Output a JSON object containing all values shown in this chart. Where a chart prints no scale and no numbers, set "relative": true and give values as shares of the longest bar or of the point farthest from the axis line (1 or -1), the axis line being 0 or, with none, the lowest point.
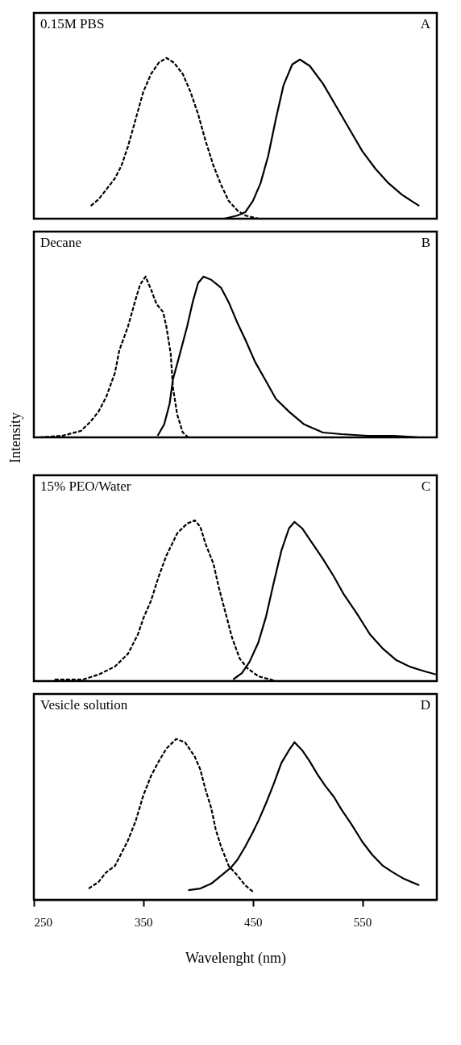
{
  "chart_data": [
    {
      "type": "line",
      "title": "0.15M PBS",
      "annotations": [
        "A"
      ],
      "relative": true,
      "xlim": [
        250,
        618
      ],
      "tick_labels": false,
      "grid": false,
      "series": [
        {
          "color": "#000000",
          "line_style": "dashed",
          "x": [
            302,
            309,
            316,
            324,
            330,
            336,
            343,
            350,
            357,
            364,
            371,
            378,
            386,
            393,
            400,
            407,
            414,
            421,
            428,
            436,
            443,
            455,
            476
          ],
          "values": [
            0.08,
            0.12,
            0.18,
            0.25,
            0.33,
            0.45,
            0.62,
            0.79,
            0.9,
            0.97,
            1,
            0.97,
            0.9,
            0.79,
            0.65,
            0.48,
            0.33,
            0.21,
            0.11,
            0.05,
            0.02,
            0,
            0
          ]
        },
        {
          "color": "#000000",
          "line_style": "solid",
          "x": [
            405,
            424,
            436,
            443,
            450,
            457,
            464,
            471,
            478,
            486,
            493,
            502,
            514,
            526,
            538,
            550,
            562,
            574,
            586,
            595,
            602
          ],
          "values": [
            0,
            0,
            0.02,
            0.04,
            0.11,
            0.22,
            0.39,
            0.62,
            0.83,
            0.96,
            0.99,
            0.95,
            0.84,
            0.7,
            0.56,
            0.42,
            0.31,
            0.22,
            0.15,
            0.11,
            0.08
          ]
        }
      ]
    },
    {
      "type": "line",
      "title": "Decane",
      "annotations": [
        "B"
      ],
      "ylabel": "Intensity",
      "relative": true,
      "xlim": [
        250,
        618
      ],
      "tick_labels": false,
      "grid": false,
      "series": [
        {
          "color": "#000000",
          "line_style": "dashed",
          "x": [
            255,
            276,
            293,
            302,
            309,
            316,
            324,
            328,
            336,
            343,
            347,
            352,
            357,
            362,
            368,
            371,
            375,
            377,
            381,
            386,
            391
          ],
          "values": [
            0,
            0.01,
            0.04,
            0.1,
            0.16,
            0.25,
            0.4,
            0.54,
            0.69,
            0.86,
            0.95,
            1,
            0.92,
            0.83,
            0.78,
            0.69,
            0.52,
            0.31,
            0.14,
            0.03,
            0
          ]
        },
        {
          "color": "#000000",
          "line_style": "solid",
          "x": [
            363,
            369,
            374,
            377,
            383,
            390,
            395,
            400,
            405,
            412,
            421,
            428,
            436,
            443,
            452,
            462,
            471,
            483,
            497,
            514,
            531,
            555,
            578,
            602
          ],
          "values": [
            0.01,
            0.08,
            0.21,
            0.36,
            0.51,
            0.69,
            0.84,
            0.96,
            1,
            0.98,
            0.93,
            0.84,
            0.71,
            0.61,
            0.47,
            0.35,
            0.24,
            0.16,
            0.08,
            0.03,
            0.02,
            0.01,
            0.01,
            0
          ]
        }
      ]
    },
    {
      "type": "line",
      "title": "15% PEO/Water",
      "annotations": [
        "C"
      ],
      "relative": true,
      "xlim": [
        250,
        618
      ],
      "tick_labels": false,
      "grid": false,
      "series": [
        {
          "color": "#000000",
          "line_style": "dashed",
          "x": [
            269,
            295,
            309,
            324,
            336,
            345,
            350,
            357,
            364,
            371,
            381,
            390,
            397,
            402,
            407,
            414,
            419,
            426,
            431,
            438,
            445,
            455,
            471
          ],
          "values": [
            0.01,
            0.01,
            0.04,
            0.09,
            0.17,
            0.29,
            0.39,
            0.5,
            0.65,
            0.78,
            0.92,
            0.98,
            1,
            0.96,
            0.85,
            0.73,
            0.58,
            0.4,
            0.27,
            0.14,
            0.08,
            0.03,
            0
          ]
        },
        {
          "color": "#000000",
          "line_style": "solid",
          "x": [
            432,
            440,
            447,
            455,
            462,
            469,
            476,
            483,
            488,
            495,
            505,
            514,
            524,
            533,
            545,
            557,
            569,
            581,
            593,
            607,
            618
          ],
          "values": [
            0.01,
            0.05,
            0.12,
            0.24,
            0.4,
            0.61,
            0.81,
            0.95,
            0.99,
            0.95,
            0.85,
            0.76,
            0.65,
            0.54,
            0.42,
            0.29,
            0.2,
            0.13,
            0.09,
            0.06,
            0.04
          ]
        }
      ]
    },
    {
      "type": "line",
      "title": "Vesicle solution",
      "annotations": [
        "D"
      ],
      "xlabel": "Wavelenght (nm)",
      "relative": true,
      "xlim": [
        250,
        618
      ],
      "xticks": [
        250,
        350,
        450,
        550
      ],
      "tick_labels": "x",
      "grid": false,
      "series": [
        {
          "color": "#000000",
          "line_style": "dashed",
          "x": [
            300,
            309,
            316,
            324,
            330,
            336,
            343,
            350,
            357,
            364,
            371,
            380,
            388,
            397,
            402,
            407,
            412,
            416,
            421,
            428,
            436,
            443,
            450
          ],
          "values": [
            0.07,
            0.11,
            0.17,
            0.21,
            0.29,
            0.37,
            0.49,
            0.65,
            0.77,
            0.86,
            0.94,
            1,
            0.98,
            0.89,
            0.81,
            0.68,
            0.57,
            0.44,
            0.33,
            0.21,
            0.15,
            0.09,
            0.05
          ]
        },
        {
          "color": "#000000",
          "line_style": "solid",
          "x": [
            391,
            402,
            412,
            421,
            430,
            436,
            443,
            450,
            455,
            462,
            469,
            476,
            483,
            488,
            495,
            502,
            509,
            516,
            524,
            531,
            540,
            550,
            559,
            569,
            578,
            588,
            602
          ],
          "values": [
            0.06,
            0.07,
            0.1,
            0.15,
            0.2,
            0.25,
            0.33,
            0.42,
            0.49,
            0.6,
            0.72,
            0.85,
            0.93,
            0.98,
            0.93,
            0.86,
            0.78,
            0.71,
            0.64,
            0.56,
            0.47,
            0.36,
            0.28,
            0.21,
            0.17,
            0.13,
            0.09
          ]
        }
      ]
    }
  ]
}
